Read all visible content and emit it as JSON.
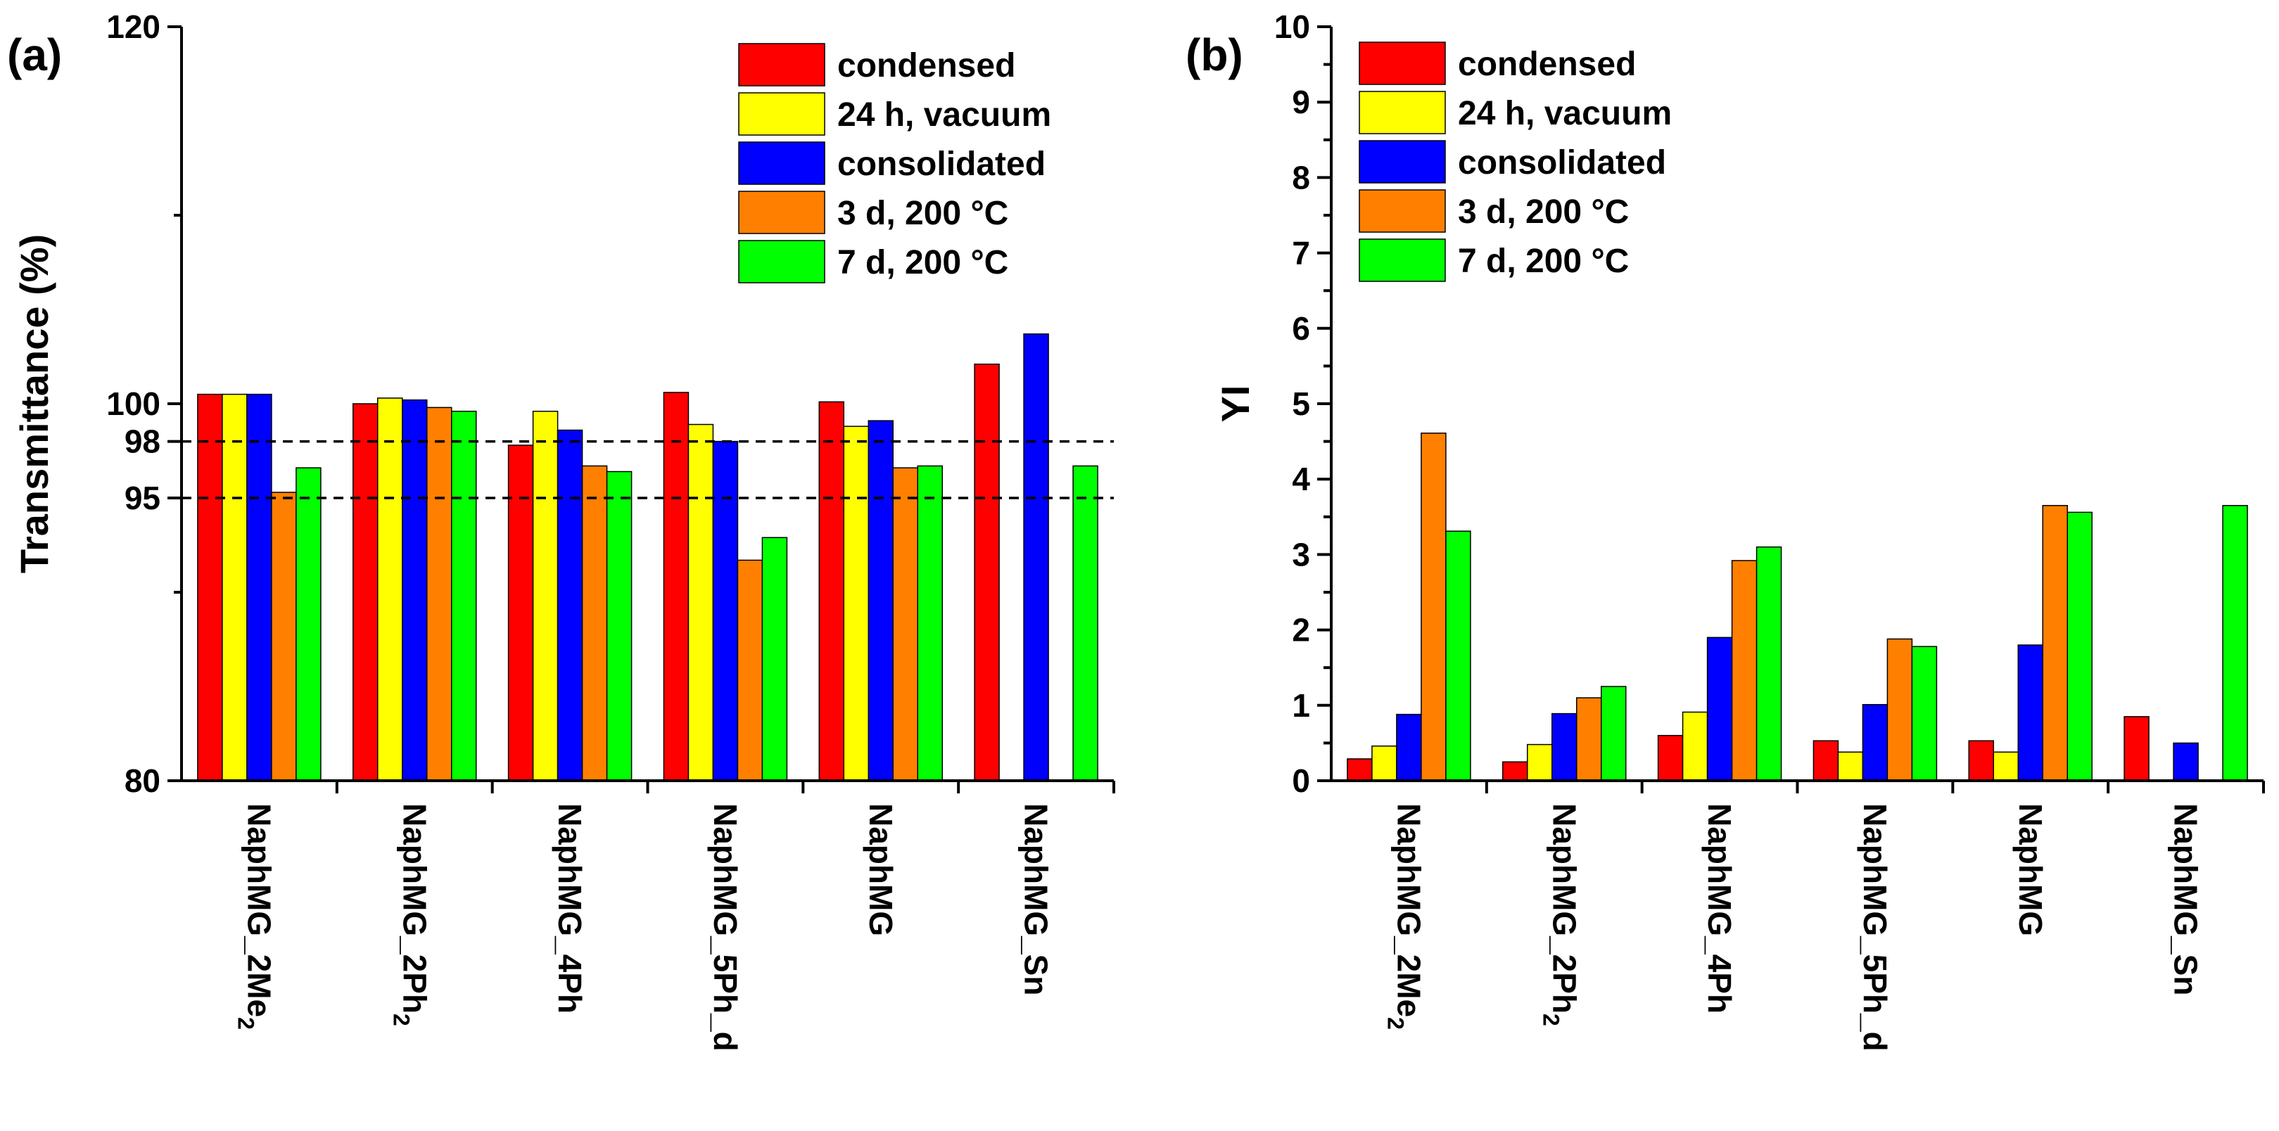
{
  "chart_data": [
    {
      "panel_label": "(a)",
      "type": "bar",
      "ylabel": "Transmittance (%)",
      "ylim": [
        80,
        120
      ],
      "y_ticks": [
        80,
        95,
        98,
        100,
        120
      ],
      "y_minor_ticks": [
        90,
        110
      ],
      "hlines": [
        95,
        98
      ],
      "categories": [
        "NaphMG_2Me2",
        "NaphMG_2Ph2",
        "NaphMG_4Ph",
        "NaphMG_5Ph_d",
        "NaphMG",
        "NaphMG_Sn"
      ],
      "category_labels": [
        {
          "base": "NaphMG_2Me",
          "sub": "2"
        },
        {
          "base": "NaphMG_2Ph",
          "sub": "2"
        },
        {
          "base": "NaphMG_4Ph",
          "sub": ""
        },
        {
          "base": "NaphMG_5Ph_d",
          "sub": ""
        },
        {
          "base": "NaphMG",
          "sub": ""
        },
        {
          "base": "NaphMG_Sn",
          "sub": ""
        }
      ],
      "series": [
        {
          "name": "condensed",
          "color": "#ff0000",
          "values": [
            100.5,
            100.0,
            97.8,
            100.6,
            100.1,
            102.1
          ]
        },
        {
          "name": "24 h, vacuum",
          "color": "#ffff00",
          "values": [
            100.5,
            100.3,
            99.6,
            98.9,
            98.8,
            null
          ]
        },
        {
          "name": "consolidated",
          "color": "#0000ff",
          "values": [
            100.5,
            100.2,
            98.6,
            98.0,
            99.1,
            103.7
          ]
        },
        {
          "name": "3 d, 200 °C",
          "color": "#ff8000",
          "values": [
            95.3,
            99.8,
            96.7,
            91.7,
            96.6,
            null
          ]
        },
        {
          "name": "7 d, 200 °C",
          "color": "#00ff00",
          "values": [
            96.6,
            99.6,
            96.4,
            92.9,
            96.7,
            96.7
          ]
        }
      ],
      "legend_position": "top-right"
    },
    {
      "panel_label": "(b)",
      "type": "bar",
      "ylabel": "YI",
      "ylim": [
        0,
        10
      ],
      "y_ticks": [
        0,
        1,
        2,
        3,
        4,
        5,
        6,
        7,
        8,
        9,
        10
      ],
      "categories": [
        "NaphMG_2Me2",
        "NaphMG_2Ph2",
        "NaphMG_4Ph",
        "NaphMG_5Ph_d",
        "NaphMG",
        "NaphMG_Sn"
      ],
      "category_labels": [
        {
          "base": "NaphMG_2Me",
          "sub": "2"
        },
        {
          "base": "NaphMG_2Ph",
          "sub": "2"
        },
        {
          "base": "NaphMG_4Ph",
          "sub": ""
        },
        {
          "base": "NaphMG_5Ph_d",
          "sub": ""
        },
        {
          "base": "NaphMG",
          "sub": ""
        },
        {
          "base": "NaphMG_Sn",
          "sub": ""
        }
      ],
      "series": [
        {
          "name": "condensed",
          "color": "#ff0000",
          "values": [
            0.29,
            0.25,
            0.6,
            0.53,
            0.53,
            0.85
          ]
        },
        {
          "name": "24 h, vacuum",
          "color": "#ffff00",
          "values": [
            0.46,
            0.48,
            0.91,
            0.38,
            0.38,
            null
          ]
        },
        {
          "name": "consolidated",
          "color": "#0000ff",
          "values": [
            0.88,
            0.89,
            1.9,
            1.01,
            1.8,
            0.5
          ]
        },
        {
          "name": "3 d, 200 °C",
          "color": "#ff8000",
          "values": [
            4.61,
            1.1,
            2.92,
            1.88,
            3.65,
            null
          ]
        },
        {
          "name": "7 d, 200 °C",
          "color": "#00ff00",
          "values": [
            3.31,
            1.25,
            3.1,
            1.78,
            3.56,
            3.65
          ]
        }
      ],
      "legend_position": "top-left"
    }
  ]
}
